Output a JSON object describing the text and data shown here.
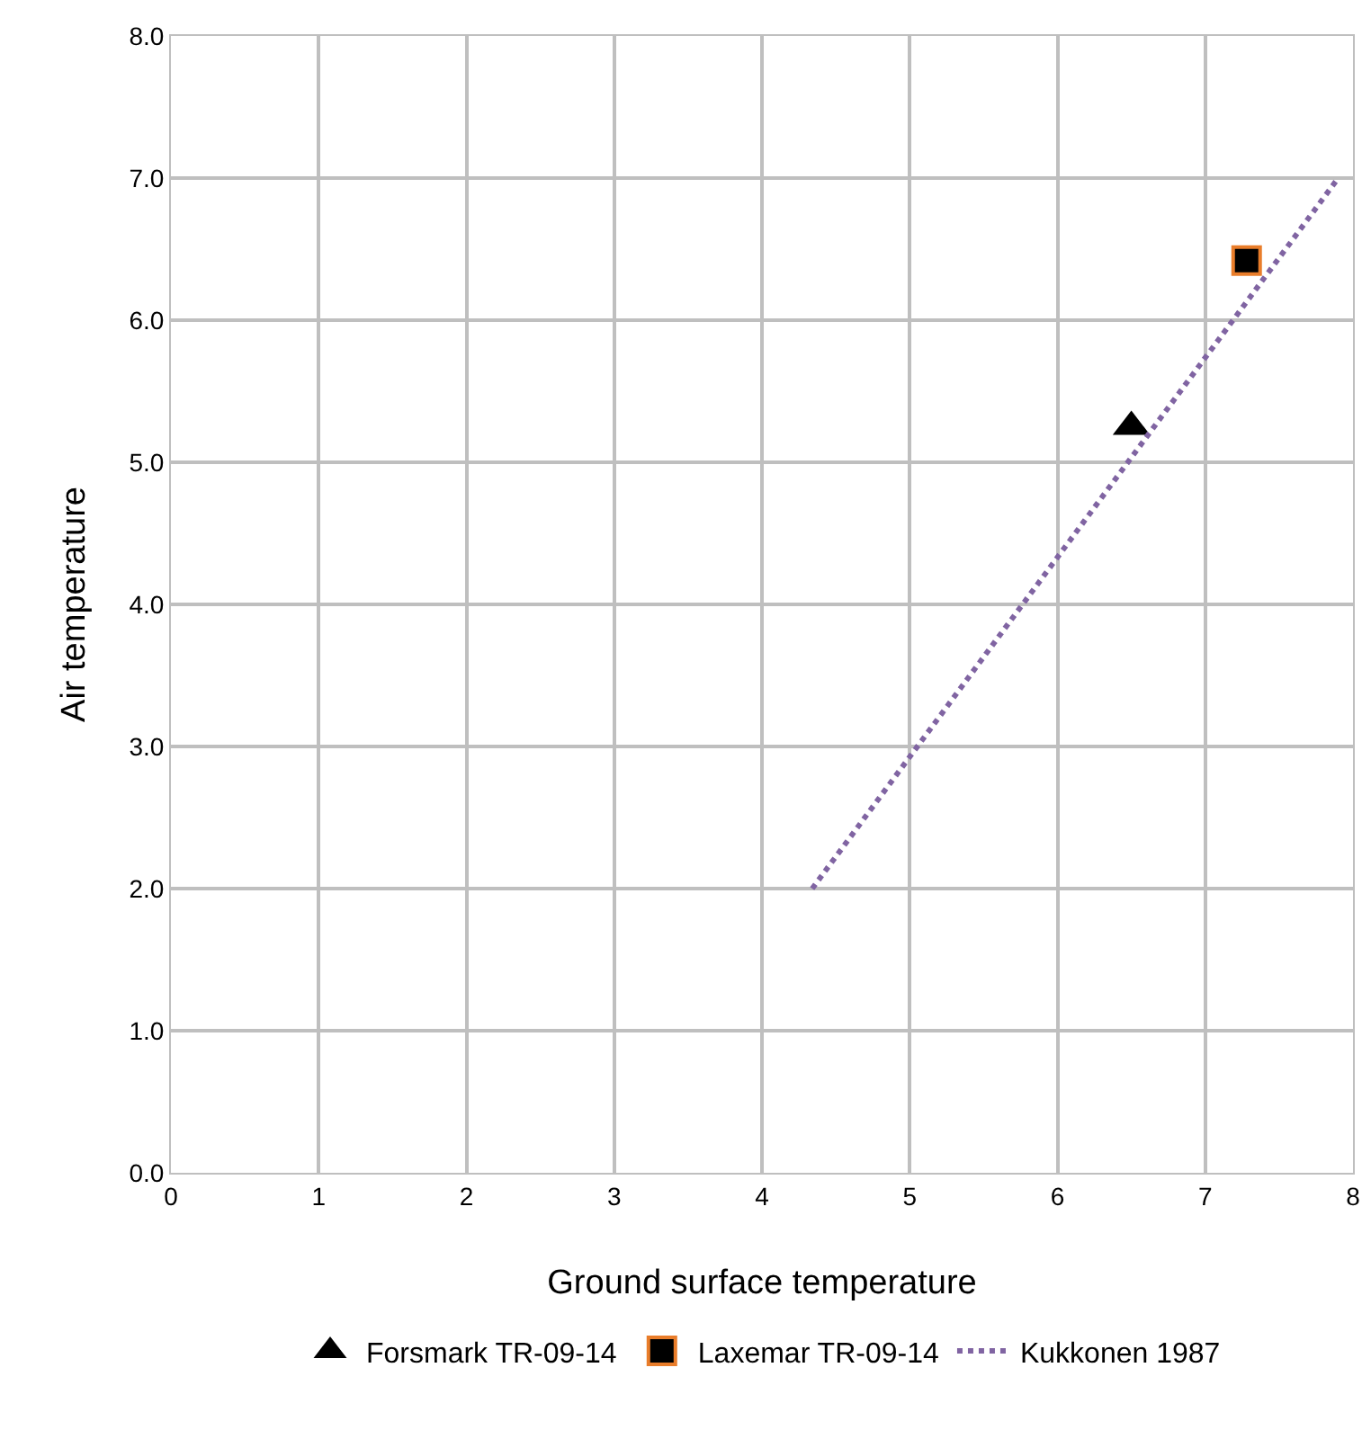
{
  "chart_data": {
    "type": "scatter",
    "xlabel": "Ground surface temperature",
    "ylabel": "Air temperature",
    "xlim": [
      0,
      8
    ],
    "ylim": [
      0,
      8
    ],
    "xticks": [
      0,
      1,
      2,
      3,
      4,
      5,
      6,
      7,
      8
    ],
    "yticks": [
      {
        "value": 0,
        "label": "0.0"
      },
      {
        "value": 1,
        "label": "1.0"
      },
      {
        "value": 2,
        "label": "2.0"
      },
      {
        "value": 3,
        "label": "3.0"
      },
      {
        "value": 4,
        "label": "4.0"
      },
      {
        "value": 5,
        "label": "5.0"
      },
      {
        "value": 6,
        "label": "6.0"
      },
      {
        "value": 7,
        "label": "7.0"
      },
      {
        "value": 8,
        "label": "8.0"
      }
    ],
    "grid": true,
    "legend": "bottom",
    "series": [
      {
        "name": "Forsmark TR-09-14",
        "marker": "triangle",
        "color": "#000000",
        "x": [
          6.5
        ],
        "values": [
          5.25
        ]
      },
      {
        "name": "Laxemar TR-09-14",
        "marker": "square",
        "color": "#000000",
        "x": [
          7.28
        ],
        "values": [
          6.42
        ]
      },
      {
        "name": "Kukkonen 1987",
        "type": "line",
        "line_style": "dotted",
        "color": "#8064a2",
        "x": [
          4.34,
          7.9
        ],
        "values": [
          2.0,
          7.0
        ]
      }
    ]
  }
}
